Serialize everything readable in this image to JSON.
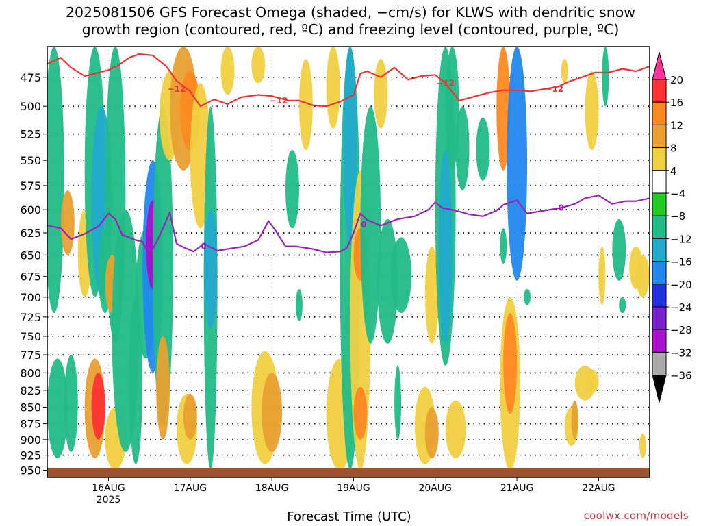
{
  "title": "2025081506 GFS Forecast Omega (shaded, −cm/s) for KLWS with dendritic snow\ngrowth region (contoured, red, ºC) and freezing level (contoured, purple, ºC)",
  "credit": "coolwx.com/models",
  "chart_data": {
    "type": "heatmap",
    "title": "2025081506 GFS Forecast Omega (shaded, −cm/s) for KLWS with dendritic snow growth region (contoured, red, ºC) and freezing level (contoured, purple, ºC)",
    "xlabel": "Forecast Time (UTC)",
    "ylabel": "",
    "x_ticks": [
      {
        "label": "16AUG",
        "sub": "2025",
        "hours": 0
      },
      {
        "label": "17AUG",
        "sub": "",
        "hours": 24
      },
      {
        "label": "18AUG",
        "sub": "",
        "hours": 48
      },
      {
        "label": "19AUG",
        "sub": "",
        "hours": 72
      },
      {
        "label": "20AUG",
        "sub": "",
        "hours": 96
      },
      {
        "label": "21AUG",
        "sub": "",
        "hours": 120
      },
      {
        "label": "22AUG",
        "sub": "",
        "hours": 144
      }
    ],
    "xlim_hours": [
      -18,
      159
    ],
    "y_ticks": [
      475,
      500,
      525,
      550,
      575,
      600,
      625,
      650,
      675,
      700,
      725,
      750,
      775,
      800,
      825,
      850,
      875,
      900,
      925,
      950
    ],
    "ylim_hPa": [
      450,
      962
    ],
    "y_scale": "log-pressure",
    "grid": "dotted horizontal lines at each pressure tick",
    "colorbar": {
      "labels": [
        "20",
        "16",
        "12",
        "8",
        "4",
        "−4",
        "−8",
        "−12",
        "−16",
        "−20",
        "−24",
        "−28",
        "−32",
        "−36"
      ],
      "colors": [
        "#ff3399",
        "#ff3333",
        "#ff8822",
        "#e8a030",
        "#f0d040",
        "#ffffff",
        "#22cc22",
        "#22bb88",
        "#22aacc",
        "#2288ee",
        "#2233dd",
        "#7722cc",
        "#aa11cc",
        "#aaaaaa",
        "#000000"
      ]
    },
    "dgz_contour": {
      "label": "−12",
      "color": "#ee3333",
      "points": [
        [
          -18,
          464
        ],
        [
          -14,
          459
        ],
        [
          -11,
          467
        ],
        [
          -7,
          474
        ],
        [
          -4,
          472
        ],
        [
          0,
          469
        ],
        [
          3,
          465
        ],
        [
          6,
          459
        ],
        [
          9,
          456
        ],
        [
          13,
          457
        ],
        [
          17,
          466
        ],
        [
          20,
          478
        ],
        [
          24,
          487
        ],
        [
          27,
          500
        ],
        [
          31,
          494
        ],
        [
          35,
          498
        ],
        [
          39,
          492
        ],
        [
          44,
          490
        ],
        [
          48,
          491
        ],
        [
          53,
          495
        ],
        [
          56,
          495
        ],
        [
          60,
          499
        ],
        [
          64,
          500
        ],
        [
          68,
          496
        ],
        [
          72,
          490
        ],
        [
          74,
          472
        ],
        [
          76,
          470
        ],
        [
          80,
          475
        ],
        [
          84,
          467
        ],
        [
          88,
          477
        ],
        [
          92,
          474
        ],
        [
          96,
          473
        ],
        [
          99,
          480
        ],
        [
          103,
          495
        ],
        [
          108,
          491
        ],
        [
          112,
          488
        ],
        [
          116,
          486
        ],
        [
          120,
          486
        ],
        [
          124,
          487
        ],
        [
          128,
          485
        ],
        [
          132,
          483
        ],
        [
          135,
          479
        ],
        [
          139,
          475
        ],
        [
          143,
          471
        ],
        [
          147,
          471
        ],
        [
          151,
          468
        ],
        [
          155,
          470
        ],
        [
          159,
          466
        ]
      ]
    },
    "freezing_contour": {
      "label": "0",
      "color": "#9922bb",
      "points": [
        [
          -18,
          617
        ],
        [
          -14,
          620
        ],
        [
          -11,
          632
        ],
        [
          -7,
          626
        ],
        [
          -3,
          618
        ],
        [
          0,
          604
        ],
        [
          2,
          610
        ],
        [
          4,
          627
        ],
        [
          8,
          633
        ],
        [
          10,
          635
        ],
        [
          12,
          650
        ],
        [
          14,
          636
        ],
        [
          16,
          620
        ],
        [
          18,
          603
        ],
        [
          20,
          637
        ],
        [
          22,
          641
        ],
        [
          25,
          646
        ],
        [
          28,
          637
        ],
        [
          30,
          641
        ],
        [
          32,
          645
        ],
        [
          35,
          643
        ],
        [
          40,
          640
        ],
        [
          44,
          633
        ],
        [
          47,
          612
        ],
        [
          49,
          622
        ],
        [
          52,
          640
        ],
        [
          55,
          640
        ],
        [
          60,
          643
        ],
        [
          64,
          647
        ],
        [
          68,
          646
        ],
        [
          70,
          642
        ],
        [
          72,
          625
        ],
        [
          74,
          604
        ],
        [
          76,
          611
        ],
        [
          80,
          617
        ],
        [
          85,
          610
        ],
        [
          90,
          607
        ],
        [
          94,
          600
        ],
        [
          96,
          592
        ],
        [
          98,
          598
        ],
        [
          102,
          601
        ],
        [
          106,
          605
        ],
        [
          110,
          607
        ],
        [
          114,
          601
        ],
        [
          116,
          595
        ],
        [
          120,
          590
        ],
        [
          123,
          604
        ],
        [
          128,
          601
        ],
        [
          133,
          598
        ],
        [
          137,
          594
        ],
        [
          140,
          588
        ],
        [
          144,
          585
        ],
        [
          148,
          594
        ],
        [
          152,
          591
        ],
        [
          155,
          591
        ],
        [
          159,
          588
        ]
      ]
    },
    "contour_label_positions": {
      "dgz": [
        [
          20,
          485
        ],
        [
          50,
          495
        ],
        [
          99,
          480
        ],
        [
          131,
          485
        ]
      ],
      "freezing": [
        [
          28,
          640
        ],
        [
          75,
          616
        ],
        [
          133,
          598
        ]
      ]
    },
    "omega_areas": [
      {
        "x": -16,
        "p0": 450,
        "p1": 720,
        "w": 3,
        "v": -8
      },
      {
        "x": -15,
        "p0": 780,
        "p1": 930,
        "w": 3,
        "v": -8
      },
      {
        "x": -12,
        "p0": 580,
        "p1": 650,
        "w": 2,
        "v": 8
      },
      {
        "x": -11,
        "p0": 775,
        "p1": 920,
        "w": 2,
        "v": -8
      },
      {
        "x": -7,
        "p0": 600,
        "p1": 700,
        "w": 2,
        "v": 4
      },
      {
        "x": -4,
        "p0": 450,
        "p1": 700,
        "w": 3,
        "v": -8
      },
      {
        "x": -4,
        "p0": 780,
        "p1": 930,
        "w": 3,
        "v": 8
      },
      {
        "x": -3,
        "p0": 800,
        "p1": 900,
        "w": 2,
        "v": 16
      },
      {
        "x": -2,
        "p0": 500,
        "p1": 700,
        "w": 3,
        "v": -12
      },
      {
        "x": -1,
        "p0": 620,
        "p1": 720,
        "w": 2,
        "v": -8
      },
      {
        "x": 2,
        "p0": 450,
        "p1": 760,
        "w": 3,
        "v": -8
      },
      {
        "x": 1,
        "p0": 650,
        "p1": 720,
        "w": 2,
        "v": 8
      },
      {
        "x": 2,
        "p0": 850,
        "p1": 950,
        "w": 3,
        "v": 4
      },
      {
        "x": 5,
        "p0": 600,
        "p1": 920,
        "w": 4,
        "v": -8
      },
      {
        "x": 8,
        "p0": 700,
        "p1": 940,
        "w": 2,
        "v": -8
      },
      {
        "x": 11,
        "p0": 620,
        "p1": 780,
        "w": 3,
        "v": -8
      },
      {
        "x": 13,
        "p0": 550,
        "p1": 800,
        "w": 3,
        "v": -16
      },
      {
        "x": 13,
        "p0": 590,
        "p1": 690,
        "w": 2,
        "v": -28
      },
      {
        "x": 16,
        "p0": 500,
        "p1": 880,
        "w": 3,
        "v": -8
      },
      {
        "x": 16,
        "p0": 750,
        "p1": 900,
        "w": 2,
        "v": 8
      },
      {
        "x": 18,
        "p0": 470,
        "p1": 550,
        "w": 3,
        "v": 4
      },
      {
        "x": 22,
        "p0": 450,
        "p1": 560,
        "w": 4,
        "v": 8
      },
      {
        "x": 24,
        "p0": 470,
        "p1": 540,
        "w": 3,
        "v": 12
      },
      {
        "x": 27,
        "p0": 480,
        "p1": 620,
        "w": 3,
        "v": 4
      },
      {
        "x": 30,
        "p0": 500,
        "p1": 950,
        "w": 2,
        "v": -8
      },
      {
        "x": 30,
        "p0": 600,
        "p1": 740,
        "w": 2,
        "v": -12
      },
      {
        "x": 23,
        "p0": 830,
        "p1": 940,
        "w": 3,
        "v": 4
      },
      {
        "x": 24,
        "p0": 830,
        "p1": 900,
        "w": 2,
        "v": 8
      },
      {
        "x": 35,
        "p0": 450,
        "p1": 490,
        "w": 2,
        "v": 4
      },
      {
        "x": 44,
        "p0": 450,
        "p1": 480,
        "w": 2,
        "v": 4
      },
      {
        "x": 46,
        "p0": 770,
        "p1": 940,
        "w": 4,
        "v": 4
      },
      {
        "x": 48,
        "p0": 800,
        "p1": 920,
        "w": 3,
        "v": 8
      },
      {
        "x": 54,
        "p0": 540,
        "p1": 620,
        "w": 2,
        "v": -8
      },
      {
        "x": 58,
        "p0": 460,
        "p1": 540,
        "w": 2,
        "v": 4
      },
      {
        "x": 56,
        "p0": 690,
        "p1": 730,
        "w": 1,
        "v": -8
      },
      {
        "x": 66,
        "p0": 450,
        "p1": 520,
        "w": 2,
        "v": 4
      },
      {
        "x": 68,
        "p0": 780,
        "p1": 950,
        "w": 4,
        "v": 4
      },
      {
        "x": 71,
        "p0": 450,
        "p1": 950,
        "w": 3,
        "v": -8
      },
      {
        "x": 71,
        "p0": 450,
        "p1": 640,
        "w": 2,
        "v": -12
      },
      {
        "x": 74,
        "p0": 560,
        "p1": 950,
        "w": 3,
        "v": 4
      },
      {
        "x": 74,
        "p0": 620,
        "p1": 680,
        "w": 2,
        "v": 12
      },
      {
        "x": 74,
        "p0": 820,
        "p1": 900,
        "w": 2,
        "v": 12
      },
      {
        "x": 77,
        "p0": 500,
        "p1": 760,
        "w": 3,
        "v": -8
      },
      {
        "x": 80,
        "p0": 460,
        "p1": 520,
        "w": 2,
        "v": 4
      },
      {
        "x": 82,
        "p0": 610,
        "p1": 760,
        "w": 3,
        "v": -8
      },
      {
        "x": 86,
        "p0": 630,
        "p1": 720,
        "w": 3,
        "v": -8
      },
      {
        "x": 85,
        "p0": 790,
        "p1": 900,
        "w": 1,
        "v": -8
      },
      {
        "x": 95,
        "p0": 640,
        "p1": 760,
        "w": 2,
        "v": 4
      },
      {
        "x": 93,
        "p0": 820,
        "p1": 940,
        "w": 3,
        "v": 4
      },
      {
        "x": 95,
        "p0": 850,
        "p1": 930,
        "w": 2,
        "v": 8
      },
      {
        "x": 99,
        "p0": 450,
        "p1": 790,
        "w": 3,
        "v": -8
      },
      {
        "x": 99,
        "p0": 540,
        "p1": 760,
        "w": 2,
        "v": -12
      },
      {
        "x": 101,
        "p0": 450,
        "p1": 560,
        "w": 2,
        "v": -8
      },
      {
        "x": 104,
        "p0": 500,
        "p1": 580,
        "w": 2,
        "v": -8
      },
      {
        "x": 102,
        "p0": 840,
        "p1": 930,
        "w": 3,
        "v": 4
      },
      {
        "x": 116,
        "p0": 450,
        "p1": 560,
        "w": 2,
        "v": 12
      },
      {
        "x": 118,
        "p0": 700,
        "p1": 950,
        "w": 3,
        "v": 4
      },
      {
        "x": 118,
        "p0": 720,
        "p1": 860,
        "w": 2,
        "v": 12
      },
      {
        "x": 120,
        "p0": 450,
        "p1": 680,
        "w": 3,
        "v": -16
      },
      {
        "x": 116,
        "p0": 620,
        "p1": 660,
        "w": 1,
        "v": -8
      },
      {
        "x": 123,
        "p0": 690,
        "p1": 710,
        "w": 1,
        "v": -8
      },
      {
        "x": 110,
        "p0": 510,
        "p1": 570,
        "w": 2,
        "v": -8
      },
      {
        "x": 134,
        "p0": 460,
        "p1": 480,
        "w": 1,
        "v": 4
      },
      {
        "x": 142,
        "p0": 470,
        "p1": 540,
        "w": 2,
        "v": 4
      },
      {
        "x": 140,
        "p0": 790,
        "p1": 840,
        "w": 3,
        "v": 4
      },
      {
        "x": 142,
        "p0": 795,
        "p1": 830,
        "w": 2,
        "v": 4
      },
      {
        "x": 136,
        "p0": 850,
        "p1": 910,
        "w": 2,
        "v": 4
      },
      {
        "x": 137,
        "p0": 840,
        "p1": 900,
        "w": 1,
        "v": 8
      },
      {
        "x": 146,
        "p0": 450,
        "p1": 500,
        "w": 1,
        "v": -8
      },
      {
        "x": 145,
        "p0": 640,
        "p1": 710,
        "w": 1,
        "v": 4
      },
      {
        "x": 150,
        "p0": 610,
        "p1": 680,
        "w": 2,
        "v": -8
      },
      {
        "x": 151,
        "p0": 700,
        "p1": 720,
        "w": 1,
        "v": -8
      },
      {
        "x": 155,
        "p0": 640,
        "p1": 690,
        "w": 2,
        "v": 4
      },
      {
        "x": 157,
        "p0": 650,
        "p1": 700,
        "w": 2,
        "v": 4
      },
      {
        "x": 157,
        "p0": 890,
        "p1": 930,
        "w": 1,
        "v": 4
      }
    ]
  }
}
